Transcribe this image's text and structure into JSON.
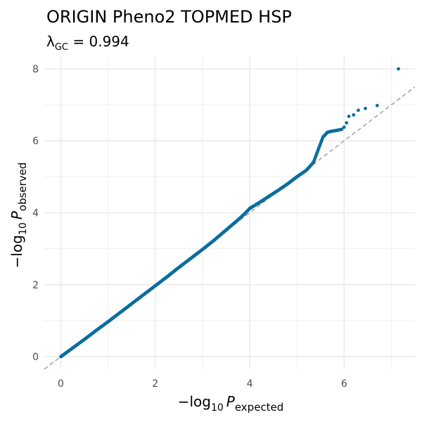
{
  "chart_data": {
    "type": "scatter",
    "title": "ORIGIN Pheno2 TOPMED HSP",
    "subtitle": {
      "lambda_symbol": "λ",
      "lambda_subscript": "GC",
      "equals": " = ",
      "value": "0.994"
    },
    "xlabel": {
      "prefix": "−log",
      "base": "10",
      "symbol": "P",
      "subscript": "expected"
    },
    "ylabel": {
      "prefix": "−log",
      "base": "10",
      "symbol": "P",
      "subscript": "observed"
    },
    "xlim": [
      -0.35,
      7.5
    ],
    "ylim": [
      -0.35,
      8.35
    ],
    "x_ticks": [
      0,
      2,
      4,
      6
    ],
    "y_ticks": [
      0,
      2,
      4,
      6,
      8
    ],
    "grid": true,
    "reference_line": "y = x",
    "point_color": "#0a6e9e",
    "reference_line_color": "#a6a6a6",
    "grid_color": "#ebebeb",
    "series": [
      {
        "x": [
          0.0,
          0.25,
          0.5,
          0.75,
          1.0,
          1.25,
          1.5,
          1.75,
          2.0,
          2.25,
          2.5,
          2.75,
          3.0,
          3.25,
          3.5,
          3.75,
          3.9,
          4.0,
          4.2,
          4.4,
          4.6,
          4.8,
          5.0,
          5.2,
          5.35,
          5.45,
          5.55,
          5.65,
          5.75,
          5.85,
          5.95,
          6.0,
          6.05,
          6.1,
          6.2,
          6.3,
          6.45,
          6.7,
          7.15
        ],
        "y": [
          0.0,
          0.24,
          0.48,
          0.73,
          0.97,
          1.22,
          1.47,
          1.72,
          1.97,
          2.22,
          2.48,
          2.73,
          2.98,
          3.24,
          3.52,
          3.8,
          3.98,
          4.12,
          4.28,
          4.45,
          4.62,
          4.8,
          5.0,
          5.18,
          5.4,
          5.75,
          6.1,
          6.24,
          6.27,
          6.29,
          6.32,
          6.38,
          6.5,
          6.68,
          6.72,
          6.85,
          6.9,
          6.98,
          8.0
        ]
      }
    ]
  }
}
